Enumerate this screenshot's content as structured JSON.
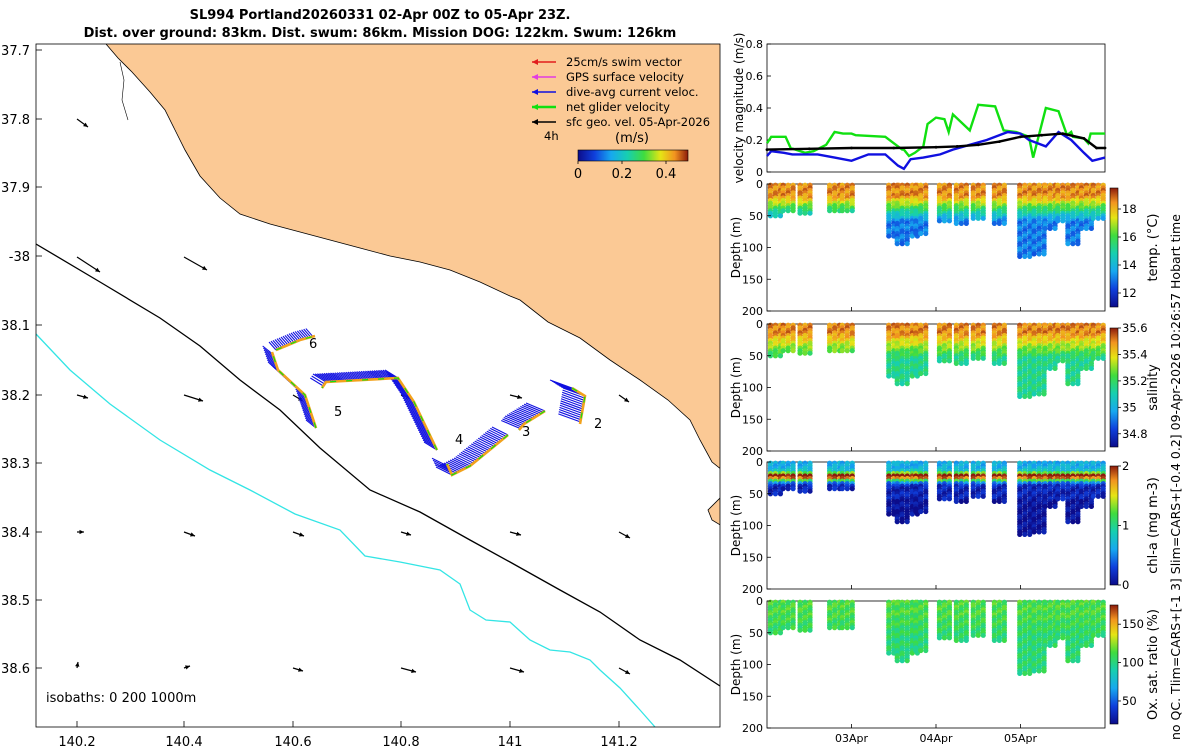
{
  "title_line1": "SL994 Portland20260331 02-Apr 00Z to 05-Apr 23Z.",
  "title_line2": "Dist. over ground: 83km. Dist. swum: 86km. Mission DOG: 122km. Swum: 126km",
  "colors": {
    "land": "#fbc995",
    "sea": "#ffffff",
    "isobath_200": "#000000",
    "isobath_1000": "#33e5e5",
    "swim_vector": "#e11d1d",
    "gps_velocity": "#e23ce2",
    "dive_avg": "#1010e0",
    "net_glider": "#10e010",
    "sfc_geo": "#000000"
  },
  "map": {
    "lon_ticks": [
      "140.2",
      "140.4",
      "140.6",
      "140.8",
      "141",
      "141.2"
    ],
    "lat_ticks": [
      "37.7",
      "37.8",
      "37.9",
      "-38",
      "38.1",
      "38.2",
      "38.3",
      "38.4",
      "38.5",
      "38.6"
    ],
    "legend": [
      {
        "label": "25cm/s swim vector",
        "color": "#e11d1d"
      },
      {
        "label": "GPS surface velocity",
        "color": "#e23ce2"
      },
      {
        "label": "dive-avg current veloc.",
        "color": "#1010e0"
      },
      {
        "label": "net glider velocity",
        "color": "#10e010"
      },
      {
        "label": "sfc geo. vel. 05-Apr-2026",
        "color": "#000000"
      }
    ],
    "legend_extra": "4h",
    "colorbar": {
      "label": "(m/s)",
      "ticks": [
        "0",
        "0.2",
        "0.4"
      ],
      "range": [
        0,
        0.5
      ]
    },
    "isobaths_label": "isobaths: 0   200  1000m",
    "waypoints": [
      "2",
      "3",
      "4",
      "5",
      "6"
    ]
  },
  "chart_data": [
    {
      "type": "line",
      "title": "",
      "ylabel": "velocity magnitude (m/s)",
      "ylim": [
        0,
        0.8
      ],
      "yticks": [
        "0",
        "0.2",
        "0.4",
        "0.6",
        "0.8"
      ],
      "time_range_days": [
        0,
        4
      ],
      "series": [
        {
          "name": "net glider velocity",
          "color": "#10e010",
          "t": [
            0,
            0.05,
            0.22,
            0.28,
            0.45,
            0.55,
            0.7,
            0.8,
            0.9,
            1.0,
            1.05,
            1.4,
            1.6,
            1.62,
            1.68,
            1.75,
            1.8,
            1.85,
            1.9,
            2.0,
            2.1,
            2.15,
            2.2,
            2.4,
            2.5,
            2.7,
            2.8,
            2.95,
            3.1,
            3.15,
            3.3,
            3.45,
            3.55,
            3.6,
            3.62,
            3.75,
            3.8,
            3.83,
            3.95,
            4.0
          ],
          "v": [
            0.18,
            0.22,
            0.22,
            0.15,
            0.12,
            0.13,
            0.17,
            0.25,
            0.24,
            0.24,
            0.23,
            0.22,
            0.14,
            0.14,
            0.1,
            0.12,
            0.14,
            0.16,
            0.3,
            0.34,
            0.33,
            0.25,
            0.36,
            0.26,
            0.42,
            0.41,
            0.26,
            0.25,
            0.22,
            0.09,
            0.4,
            0.38,
            0.23,
            0.25,
            0.22,
            0.21,
            0.18,
            0.24,
            0.24,
            0.24
          ]
        },
        {
          "name": "dive-avg current veloc.",
          "color": "#1010e0",
          "t": [
            0,
            0.05,
            0.2,
            0.3,
            0.6,
            0.8,
            1.0,
            1.2,
            1.4,
            1.55,
            1.62,
            1.7,
            1.85,
            2.05,
            2.2,
            2.4,
            2.6,
            2.85,
            3.0,
            3.1,
            3.3,
            3.45,
            3.6,
            3.75,
            3.85,
            4.0
          ],
          "v": [
            0.1,
            0.13,
            0.12,
            0.11,
            0.11,
            0.09,
            0.07,
            0.11,
            0.11,
            0.04,
            0.02,
            0.08,
            0.09,
            0.11,
            0.14,
            0.17,
            0.2,
            0.25,
            0.24,
            0.2,
            0.16,
            0.25,
            0.2,
            0.12,
            0.07,
            0.09
          ]
        },
        {
          "name": "sfc geo. vel.",
          "color": "#000000",
          "t": [
            0,
            0.5,
            1.0,
            1.5,
            2.0,
            2.25,
            2.5,
            2.75,
            3.0,
            3.25,
            3.5,
            3.75,
            3.9,
            4.0
          ],
          "v": [
            0.14,
            0.145,
            0.15,
            0.15,
            0.155,
            0.16,
            0.17,
            0.19,
            0.22,
            0.23,
            0.24,
            0.21,
            0.15,
            0.15
          ]
        }
      ]
    },
    {
      "type": "scatter",
      "ylabel": "Depth (m)",
      "ylim": [
        0,
        200
      ],
      "yticks": [
        "0",
        "50",
        "100",
        "150",
        "200"
      ],
      "colorbar_label": "temp. (°C)",
      "colorbar_ticks": [
        "12",
        "14",
        "16",
        "18"
      ],
      "colorbar_range": [
        11,
        19.5
      ],
      "profiles_day": [
        0.1,
        0.25,
        0.45,
        0.8,
        0.95,
        1.5,
        1.6,
        1.72,
        1.82,
        2.1,
        2.3,
        2.5,
        2.75,
        3.05,
        3.22,
        3.35,
        3.5,
        3.62,
        3.78,
        3.92
      ],
      "max_depth_m": [
        50,
        45,
        48,
        45,
        45,
        85,
        95,
        85,
        78,
        60,
        65,
        55,
        65,
        115,
        110,
        70,
        60,
        95,
        70,
        55
      ],
      "surface_value": 18.5,
      "deep_value": 13.0,
      "layer_depth_m": 20
    },
    {
      "type": "scatter",
      "ylabel": "Depth (m)",
      "ylim": [
        0,
        200
      ],
      "yticks": [
        "0",
        "50",
        "100",
        "150",
        "200"
      ],
      "colorbar_label": "salinity",
      "colorbar_ticks": [
        "34.8",
        "35",
        "35.2",
        "35.4",
        "35.6"
      ],
      "colorbar_range": [
        34.7,
        35.6
      ],
      "profiles_day": [
        0.1,
        0.25,
        0.45,
        0.8,
        0.95,
        1.5,
        1.6,
        1.72,
        1.82,
        2.1,
        2.3,
        2.5,
        2.75,
        3.05,
        3.22,
        3.35,
        3.5,
        3.62,
        3.78,
        3.92
      ],
      "max_depth_m": [
        50,
        45,
        48,
        45,
        45,
        85,
        95,
        85,
        78,
        60,
        65,
        55,
        65,
        115,
        110,
        70,
        60,
        95,
        70,
        55
      ],
      "surface_value": 35.5,
      "deep_value": 35.15,
      "layer_depth_m": 15
    },
    {
      "type": "scatter",
      "ylabel": "Depth (m)",
      "ylim": [
        0,
        200
      ],
      "yticks": [
        "0",
        "50",
        "100",
        "150",
        "200"
      ],
      "colorbar_label": "chl-a (mg m-3)",
      "colorbar_ticks": [
        "0",
        "1",
        "2"
      ],
      "colorbar_range": [
        0,
        2
      ],
      "profiles_day": [
        0.1,
        0.25,
        0.45,
        0.8,
        0.95,
        1.5,
        1.6,
        1.72,
        1.82,
        2.1,
        2.3,
        2.5,
        2.75,
        3.05,
        3.22,
        3.35,
        3.5,
        3.62,
        3.78,
        3.92
      ],
      "max_depth_m": [
        50,
        45,
        48,
        45,
        45,
        85,
        95,
        85,
        78,
        60,
        65,
        55,
        65,
        115,
        110,
        70,
        60,
        95,
        70,
        55
      ],
      "surface_value": 0.6,
      "deep_value": 0.15,
      "layer_depth_m": 25
    },
    {
      "type": "scatter",
      "ylabel": "Depth (m)",
      "ylim": [
        0,
        200
      ],
      "yticks": [
        "0",
        "50",
        "100",
        "150",
        "200"
      ],
      "xticks": [
        "03Apr",
        "04Apr",
        "05Apr"
      ],
      "colorbar_label": "Ox. sat. ratio (%)",
      "colorbar_ticks": [
        "50",
        "100",
        "150"
      ],
      "colorbar_range": [
        20,
        175
      ],
      "profiles_day": [
        0.1,
        0.25,
        0.45,
        0.8,
        0.95,
        1.5,
        1.6,
        1.72,
        1.82,
        2.1,
        2.3,
        2.5,
        2.75,
        3.05,
        3.22,
        3.35,
        3.5,
        3.62,
        3.78,
        3.92
      ],
      "max_depth_m": [
        50,
        45,
        48,
        45,
        45,
        85,
        95,
        85,
        78,
        60,
        65,
        55,
        65,
        115,
        110,
        70,
        60,
        95,
        70,
        55
      ],
      "surface_value": 112,
      "deep_value": 102,
      "layer_depth_m": 20
    }
  ],
  "side_note": "no QC. Tlim=CARS+[-1 3] Slim=CARS+[-0.4 0.2] 09-Apr-2026 10:26:57 Hobart time"
}
